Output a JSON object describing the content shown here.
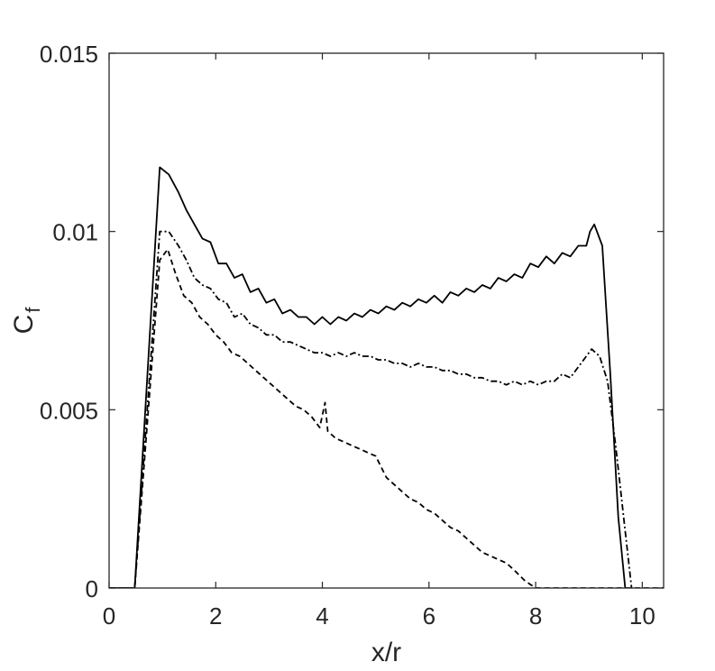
{
  "chart_data": {
    "type": "line",
    "title": "",
    "xlabel": "x/r",
    "ylabel": "C",
    "ylabel_subscript": "f",
    "xlim": [
      0,
      10.4
    ],
    "ylim": [
      0,
      0.015
    ],
    "xticks": [
      0,
      2,
      4,
      6,
      8,
      10
    ],
    "xtick_labels": [
      "0",
      "2",
      "4",
      "6",
      "8",
      "10"
    ],
    "yticks": [
      0,
      0.005,
      0.01,
      0.015
    ],
    "ytick_labels": [
      "0",
      "0.005",
      "0.01",
      "0.015"
    ],
    "grid": false,
    "box": true,
    "colors": {
      "axis": "#262626",
      "line": "#000000"
    },
    "series": [
      {
        "style": "solid",
        "x": [
          0,
          0.48,
          0.95,
          1.12,
          1.3,
          1.45,
          1.6,
          1.75,
          1.9,
          2.05,
          2.2,
          2.35,
          2.5,
          2.65,
          2.8,
          2.95,
          3.1,
          3.25,
          3.4,
          3.55,
          3.7,
          3.85,
          4.0,
          4.15,
          4.3,
          4.45,
          4.6,
          4.75,
          4.9,
          5.05,
          5.2,
          5.35,
          5.5,
          5.65,
          5.8,
          5.95,
          6.1,
          6.25,
          6.4,
          6.55,
          6.7,
          6.85,
          7.0,
          7.15,
          7.3,
          7.45,
          7.6,
          7.75,
          7.9,
          8.05,
          8.2,
          8.35,
          8.5,
          8.65,
          8.8,
          8.95,
          9.02,
          9.1,
          9.25,
          9.4,
          9.55,
          9.68
        ],
        "y": [
          0,
          0,
          0.0118,
          0.0116,
          0.0111,
          0.0106,
          0.0102,
          0.0098,
          0.0097,
          0.0091,
          0.0091,
          0.0087,
          0.0088,
          0.0083,
          0.0084,
          0.008,
          0.0081,
          0.0077,
          0.0078,
          0.0076,
          0.0076,
          0.0074,
          0.0076,
          0.0074,
          0.0076,
          0.0075,
          0.0077,
          0.0076,
          0.0078,
          0.0077,
          0.0079,
          0.0078,
          0.008,
          0.0079,
          0.0081,
          0.008,
          0.0082,
          0.008,
          0.0083,
          0.0082,
          0.0084,
          0.0083,
          0.0085,
          0.0084,
          0.0087,
          0.0086,
          0.0088,
          0.0087,
          0.0091,
          0.009,
          0.0093,
          0.0091,
          0.0094,
          0.0093,
          0.0096,
          0.0096,
          0.01,
          0.0102,
          0.0096,
          0.006,
          0.002,
          0
        ]
      },
      {
        "style": "dashdot",
        "x": [
          0,
          0.48,
          0.95,
          1.12,
          1.3,
          1.45,
          1.6,
          1.75,
          1.9,
          2.05,
          2.2,
          2.35,
          2.5,
          2.65,
          2.8,
          2.95,
          3.1,
          3.25,
          3.4,
          3.55,
          3.7,
          3.85,
          4.0,
          4.15,
          4.3,
          4.45,
          4.6,
          4.75,
          4.9,
          5.05,
          5.2,
          5.35,
          5.5,
          5.65,
          5.8,
          5.95,
          6.1,
          6.25,
          6.4,
          6.55,
          6.7,
          6.85,
          7.0,
          7.15,
          7.3,
          7.45,
          7.6,
          7.75,
          7.9,
          8.05,
          8.2,
          8.35,
          8.5,
          8.65,
          8.8,
          8.95,
          9.05,
          9.2,
          9.35,
          9.5,
          9.65,
          9.8
        ],
        "y": [
          0,
          0,
          0.01,
          0.01,
          0.0096,
          0.0092,
          0.0087,
          0.0085,
          0.0084,
          0.0081,
          0.008,
          0.0076,
          0.0077,
          0.0074,
          0.0073,
          0.0071,
          0.0071,
          0.0069,
          0.0069,
          0.0068,
          0.0067,
          0.0066,
          0.0066,
          0.0065,
          0.0066,
          0.0065,
          0.0066,
          0.0065,
          0.0065,
          0.0064,
          0.0064,
          0.0063,
          0.0063,
          0.0062,
          0.0063,
          0.0062,
          0.0062,
          0.0061,
          0.0061,
          0.006,
          0.006,
          0.0059,
          0.0059,
          0.0058,
          0.0058,
          0.0057,
          0.0058,
          0.0057,
          0.0058,
          0.0057,
          0.0058,
          0.0058,
          0.006,
          0.0059,
          0.0062,
          0.0065,
          0.0067,
          0.0065,
          0.0058,
          0.004,
          0.002,
          0
        ]
      },
      {
        "style": "dashed",
        "x": [
          0,
          0.48,
          0.95,
          1.1,
          1.25,
          1.4,
          1.55,
          1.7,
          1.85,
          2.0,
          2.15,
          2.3,
          2.45,
          2.6,
          2.75,
          2.9,
          3.05,
          3.2,
          3.35,
          3.5,
          3.65,
          3.8,
          3.95,
          4.05,
          4.1,
          4.25,
          4.4,
          4.55,
          4.7,
          4.85,
          5.0,
          5.1,
          5.2,
          5.35,
          5.5,
          5.65,
          5.8,
          5.95,
          6.1,
          6.25,
          6.4,
          6.55,
          6.7,
          6.85,
          7.0,
          7.15,
          7.3,
          7.45,
          7.6,
          7.8,
          8.0,
          10.4
        ],
        "y": [
          0,
          0,
          0.0092,
          0.0095,
          0.0088,
          0.0082,
          0.008,
          0.0076,
          0.0074,
          0.0071,
          0.0069,
          0.0066,
          0.0065,
          0.0063,
          0.0061,
          0.0059,
          0.0057,
          0.0055,
          0.0053,
          0.0051,
          0.005,
          0.0048,
          0.0045,
          0.0052,
          0.0044,
          0.0042,
          0.0041,
          0.004,
          0.0039,
          0.0038,
          0.0037,
          0.0034,
          0.0031,
          0.0029,
          0.0027,
          0.0025,
          0.0024,
          0.0022,
          0.0021,
          0.0019,
          0.0017,
          0.0016,
          0.0014,
          0.0012,
          0.001,
          0.0009,
          0.0008,
          0.0007,
          0.0005,
          0.0002,
          0,
          0
        ]
      }
    ]
  }
}
